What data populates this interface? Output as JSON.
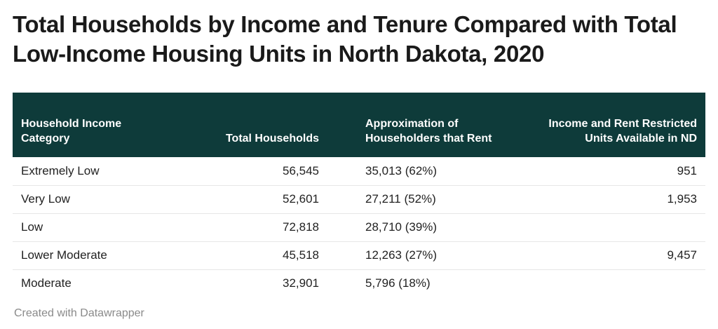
{
  "chart_data": {
    "type": "table",
    "title": "Total Households by Income and Tenure Compared with Total Low-Income Housing Units in North Dakota, 2020",
    "columns": [
      "Household Income Category",
      "Total Households",
      "Approximation of Householders that Rent",
      "Income and Rent Restricted Units Available in ND"
    ],
    "rows": [
      [
        "Extremely Low",
        "56,545",
        "35,013 (62%)",
        "951"
      ],
      [
        "Very Low",
        "52,601",
        "27,211 (52%)",
        "1,953"
      ],
      [
        "Low",
        "72,818",
        "28,710 (39%)",
        ""
      ],
      [
        "Lower Moderate",
        "45,518",
        "12,263 (27%)",
        "9,457"
      ],
      [
        "Moderate",
        "32,901",
        "5,796 (18%)",
        ""
      ]
    ],
    "header_color": "#0e3b3a"
  },
  "footer": "Created with Datawrapper"
}
